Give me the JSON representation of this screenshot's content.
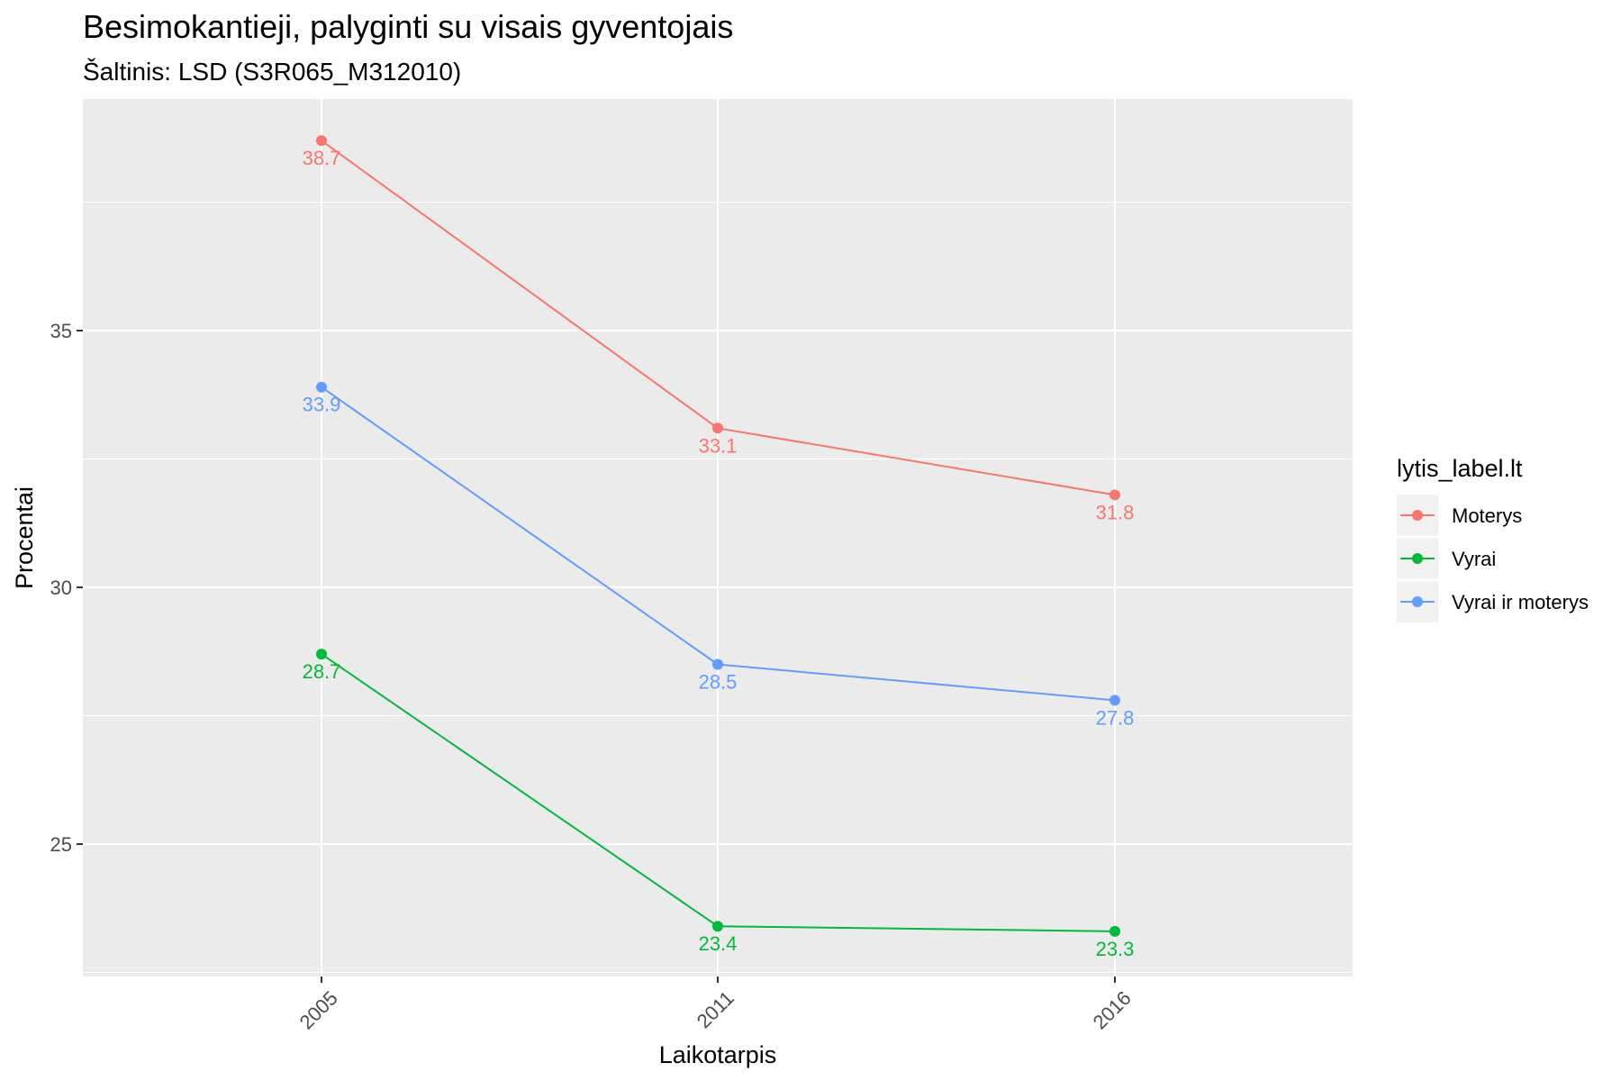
{
  "chart_data": {
    "type": "line",
    "title": "Besimokantieji, palyginti su visais gyventojais",
    "subtitle": "Šaltinis: LSD (S3R065_M312010)",
    "xlabel": "Laikotarpis",
    "ylabel": "Procentai",
    "categories": [
      "2005",
      "2011",
      "2016"
    ],
    "y_ticks": [
      25,
      30,
      35
    ],
    "ylim": [
      22.5,
      39.3
    ],
    "grid": true,
    "legend": {
      "title": "lytis_label.lt",
      "position": "right"
    },
    "series": [
      {
        "name": "Moterys",
        "color": "#F8766D",
        "values": [
          38.7,
          33.1,
          31.8
        ],
        "labels": [
          "38.7",
          "33.1",
          "31.8"
        ]
      },
      {
        "name": "Vyrai",
        "color": "#00BA38",
        "values": [
          28.7,
          23.4,
          23.3
        ],
        "labels": [
          "28.7",
          "23.4",
          "23.3"
        ]
      },
      {
        "name": "Vyrai ir moterys",
        "color": "#619CFF",
        "values": [
          33.9,
          28.5,
          27.8
        ],
        "labels": [
          "33.9",
          "28.5",
          "27.8"
        ]
      }
    ]
  }
}
